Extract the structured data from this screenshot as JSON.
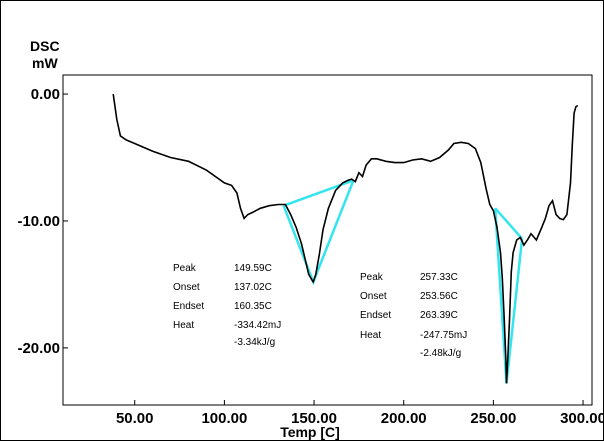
{
  "chart_data": {
    "type": "line",
    "ylabel_line1": "DSC",
    "ylabel_line2": "mW",
    "xlabel": "Temp [C]",
    "xlim": [
      10,
      305
    ],
    "ylim": [
      -24.5,
      1.5
    ],
    "x_ticks": [
      50,
      100,
      150,
      200,
      250,
      300
    ],
    "x_tick_labels": [
      "50.00",
      "100.00",
      "150.00",
      "200.00",
      "250.00",
      "300.00"
    ],
    "y_ticks": [
      0,
      -10,
      -20
    ],
    "y_tick_labels": [
      "0.00",
      "-10.00",
      "-20.00"
    ],
    "line_color": "#000000",
    "baseline_color": "#33e5ee",
    "series": [
      {
        "x": [
          38,
          40,
          42,
          45,
          50,
          60,
          70,
          80,
          90,
          95,
          100,
          104,
          107,
          109,
          111,
          113,
          116,
          120,
          125,
          130,
          134,
          137,
          140,
          143,
          145,
          147,
          149,
          149.6,
          151,
          153,
          155,
          158,
          162,
          166,
          169,
          171,
          173,
          175,
          177,
          179,
          182,
          185,
          190,
          195,
          200,
          205,
          210,
          215,
          220,
          225,
          228,
          232,
          236,
          240,
          243,
          246,
          248,
          250,
          252,
          254,
          255,
          256,
          257,
          257.3,
          258,
          259,
          260,
          261,
          263,
          265,
          267,
          269,
          271,
          274,
          277,
          279,
          281,
          283,
          285,
          287,
          289,
          291,
          293,
          294,
          295,
          296,
          297
        ],
        "y": [
          0.0,
          -2.0,
          -3.3,
          -3.6,
          -3.9,
          -4.5,
          -5.0,
          -5.3,
          -6.0,
          -6.5,
          -7.0,
          -7.2,
          -7.8,
          -9.0,
          -9.8,
          -9.5,
          -9.3,
          -9.0,
          -8.8,
          -8.7,
          -8.7,
          -9.5,
          -10.5,
          -11.8,
          -13.0,
          -14.2,
          -14.7,
          -14.8,
          -14.2,
          -12.6,
          -10.7,
          -9.0,
          -7.6,
          -7.0,
          -6.8,
          -6.7,
          -6.9,
          -6.2,
          -6.5,
          -5.6,
          -5.1,
          -5.1,
          -5.3,
          -5.4,
          -5.4,
          -5.2,
          -5.1,
          -5.3,
          -5.0,
          -4.4,
          -3.9,
          -3.8,
          -3.9,
          -4.3,
          -5.4,
          -7.5,
          -8.7,
          -9.2,
          -10.5,
          -12.5,
          -14.5,
          -17.5,
          -21.0,
          -22.8,
          -21.0,
          -17.8,
          -14.0,
          -12.5,
          -11.5,
          -11.3,
          -11.9,
          -11.5,
          -11.0,
          -11.5,
          -10.5,
          -9.8,
          -8.8,
          -8.4,
          -9.5,
          -9.8,
          -9.9,
          -9.5,
          -7.0,
          -4.0,
          -1.5,
          -1.0,
          -0.9
        ]
      }
    ],
    "baselines": [
      {
        "x": [
          133,
          172
        ],
        "y": [
          -8.8,
          -6.8
        ]
      },
      {
        "x": [
          133,
          149.6,
          172
        ],
        "y": [
          -8.8,
          -14.8,
          -6.8
        ]
      },
      {
        "x": [
          251,
          266
        ],
        "y": [
          -9.0,
          -11.4
        ]
      },
      {
        "x": [
          251,
          257.3,
          266
        ],
        "y": [
          -9.0,
          -22.8,
          -11.4
        ]
      }
    ],
    "annotations": [
      {
        "rows": [
          {
            "label": "Peak",
            "value": "149.59C"
          },
          {
            "label": "Onset",
            "value": "137.02C"
          },
          {
            "label": "Endset",
            "value": "160.35C"
          },
          {
            "label": "Heat",
            "value": "-334.42mJ"
          }
        ],
        "extra": "-3.34kJ/g"
      },
      {
        "rows": [
          {
            "label": "Peak",
            "value": "257.33C"
          },
          {
            "label": "Onset",
            "value": "253.56C"
          },
          {
            "label": "Endset",
            "value": "263.39C"
          },
          {
            "label": "Heat",
            "value": "-247.75mJ"
          }
        ],
        "extra": "-2.48kJ/g"
      }
    ]
  }
}
